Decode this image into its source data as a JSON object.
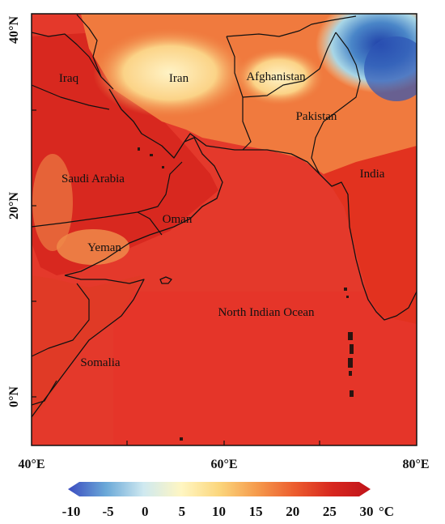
{
  "map": {
    "latitude_labels": [
      "40°N",
      "20°N",
      "0°N"
    ],
    "longitude_labels": [
      "40°E",
      "60°E",
      "80°E"
    ],
    "regions": [
      {
        "key": "iraq",
        "label": "Iraq"
      },
      {
        "key": "iran",
        "label": "Iran"
      },
      {
        "key": "afghanistan",
        "label": "Afghanistan"
      },
      {
        "key": "pakistan",
        "label": "Pakistan"
      },
      {
        "key": "saudi",
        "label": "Saudi Arabia"
      },
      {
        "key": "oman",
        "label": "Oman"
      },
      {
        "key": "india",
        "label": "India"
      },
      {
        "key": "yeman",
        "label": "Yeman"
      },
      {
        "key": "ocean",
        "label": "North Indian Ocean"
      },
      {
        "key": "somalia",
        "label": "Somalia"
      }
    ]
  },
  "colorbar": {
    "ticks": [
      "-10",
      "-5",
      "0",
      "5",
      "10",
      "15",
      "20",
      "25",
      "30"
    ],
    "unit": "°C",
    "colors": [
      "#3b4cc0",
      "#6aa8d8",
      "#cfe9f0",
      "#fff6c2",
      "#fbd67c",
      "#f59a4c",
      "#ec5c2e",
      "#d7261e",
      "#c0141a"
    ]
  }
}
